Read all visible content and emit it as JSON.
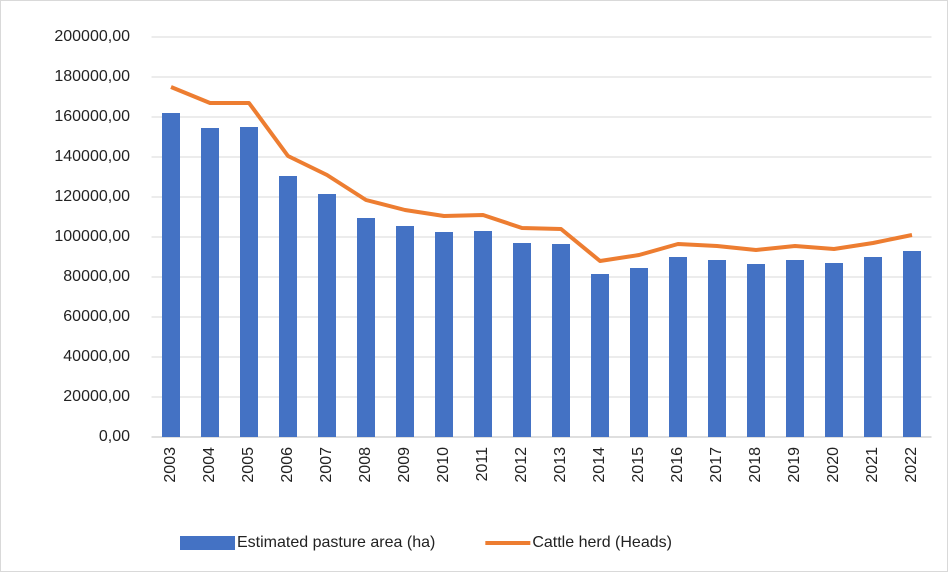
{
  "chart_data": {
    "type": "bar-line",
    "categories": [
      "2003",
      "2004",
      "2005",
      "2006",
      "2007",
      "2008",
      "2009",
      "2010",
      "2011",
      "2012",
      "2013",
      "2014",
      "2015",
      "2016",
      "2017",
      "2018",
      "2019",
      "2020",
      "2021",
      "2022"
    ],
    "series": [
      {
        "name": "Estimated pasture area (ha)",
        "type": "bar",
        "color": "#4472c4",
        "values": [
          162000,
          154500,
          155000,
          130500,
          121500,
          109500,
          105500,
          102500,
          103000,
          97000,
          96500,
          81500,
          84500,
          90000,
          88500,
          86500,
          88500,
          87000,
          90000,
          93000
        ]
      },
      {
        "name": "Cattle herd (Heads)",
        "type": "line",
        "color": "#ed7d31",
        "values": [
          175000,
          167000,
          167000,
          140500,
          131000,
          118500,
          113500,
          110500,
          111000,
          104500,
          104000,
          88000,
          91000,
          96500,
          95500,
          93500,
          95500,
          94000,
          97000,
          101000
        ]
      }
    ],
    "ylim": [
      0,
      200000
    ],
    "yticks": [
      {
        "value": 0,
        "label": "0,00"
      },
      {
        "value": 20000,
        "label": "20000,00"
      },
      {
        "value": 40000,
        "label": "40000,00"
      },
      {
        "value": 60000,
        "label": "60000,00"
      },
      {
        "value": 80000,
        "label": "80000,00"
      },
      {
        "value": 100000,
        "label": "100000,00"
      },
      {
        "value": 120000,
        "label": "120000,00"
      },
      {
        "value": 140000,
        "label": "140000,00"
      },
      {
        "value": 160000,
        "label": "160000,00"
      },
      {
        "value": 180000,
        "label": "180000,00"
      },
      {
        "value": 200000,
        "label": "200000,00"
      }
    ],
    "grid": true,
    "legend": "bottom"
  }
}
